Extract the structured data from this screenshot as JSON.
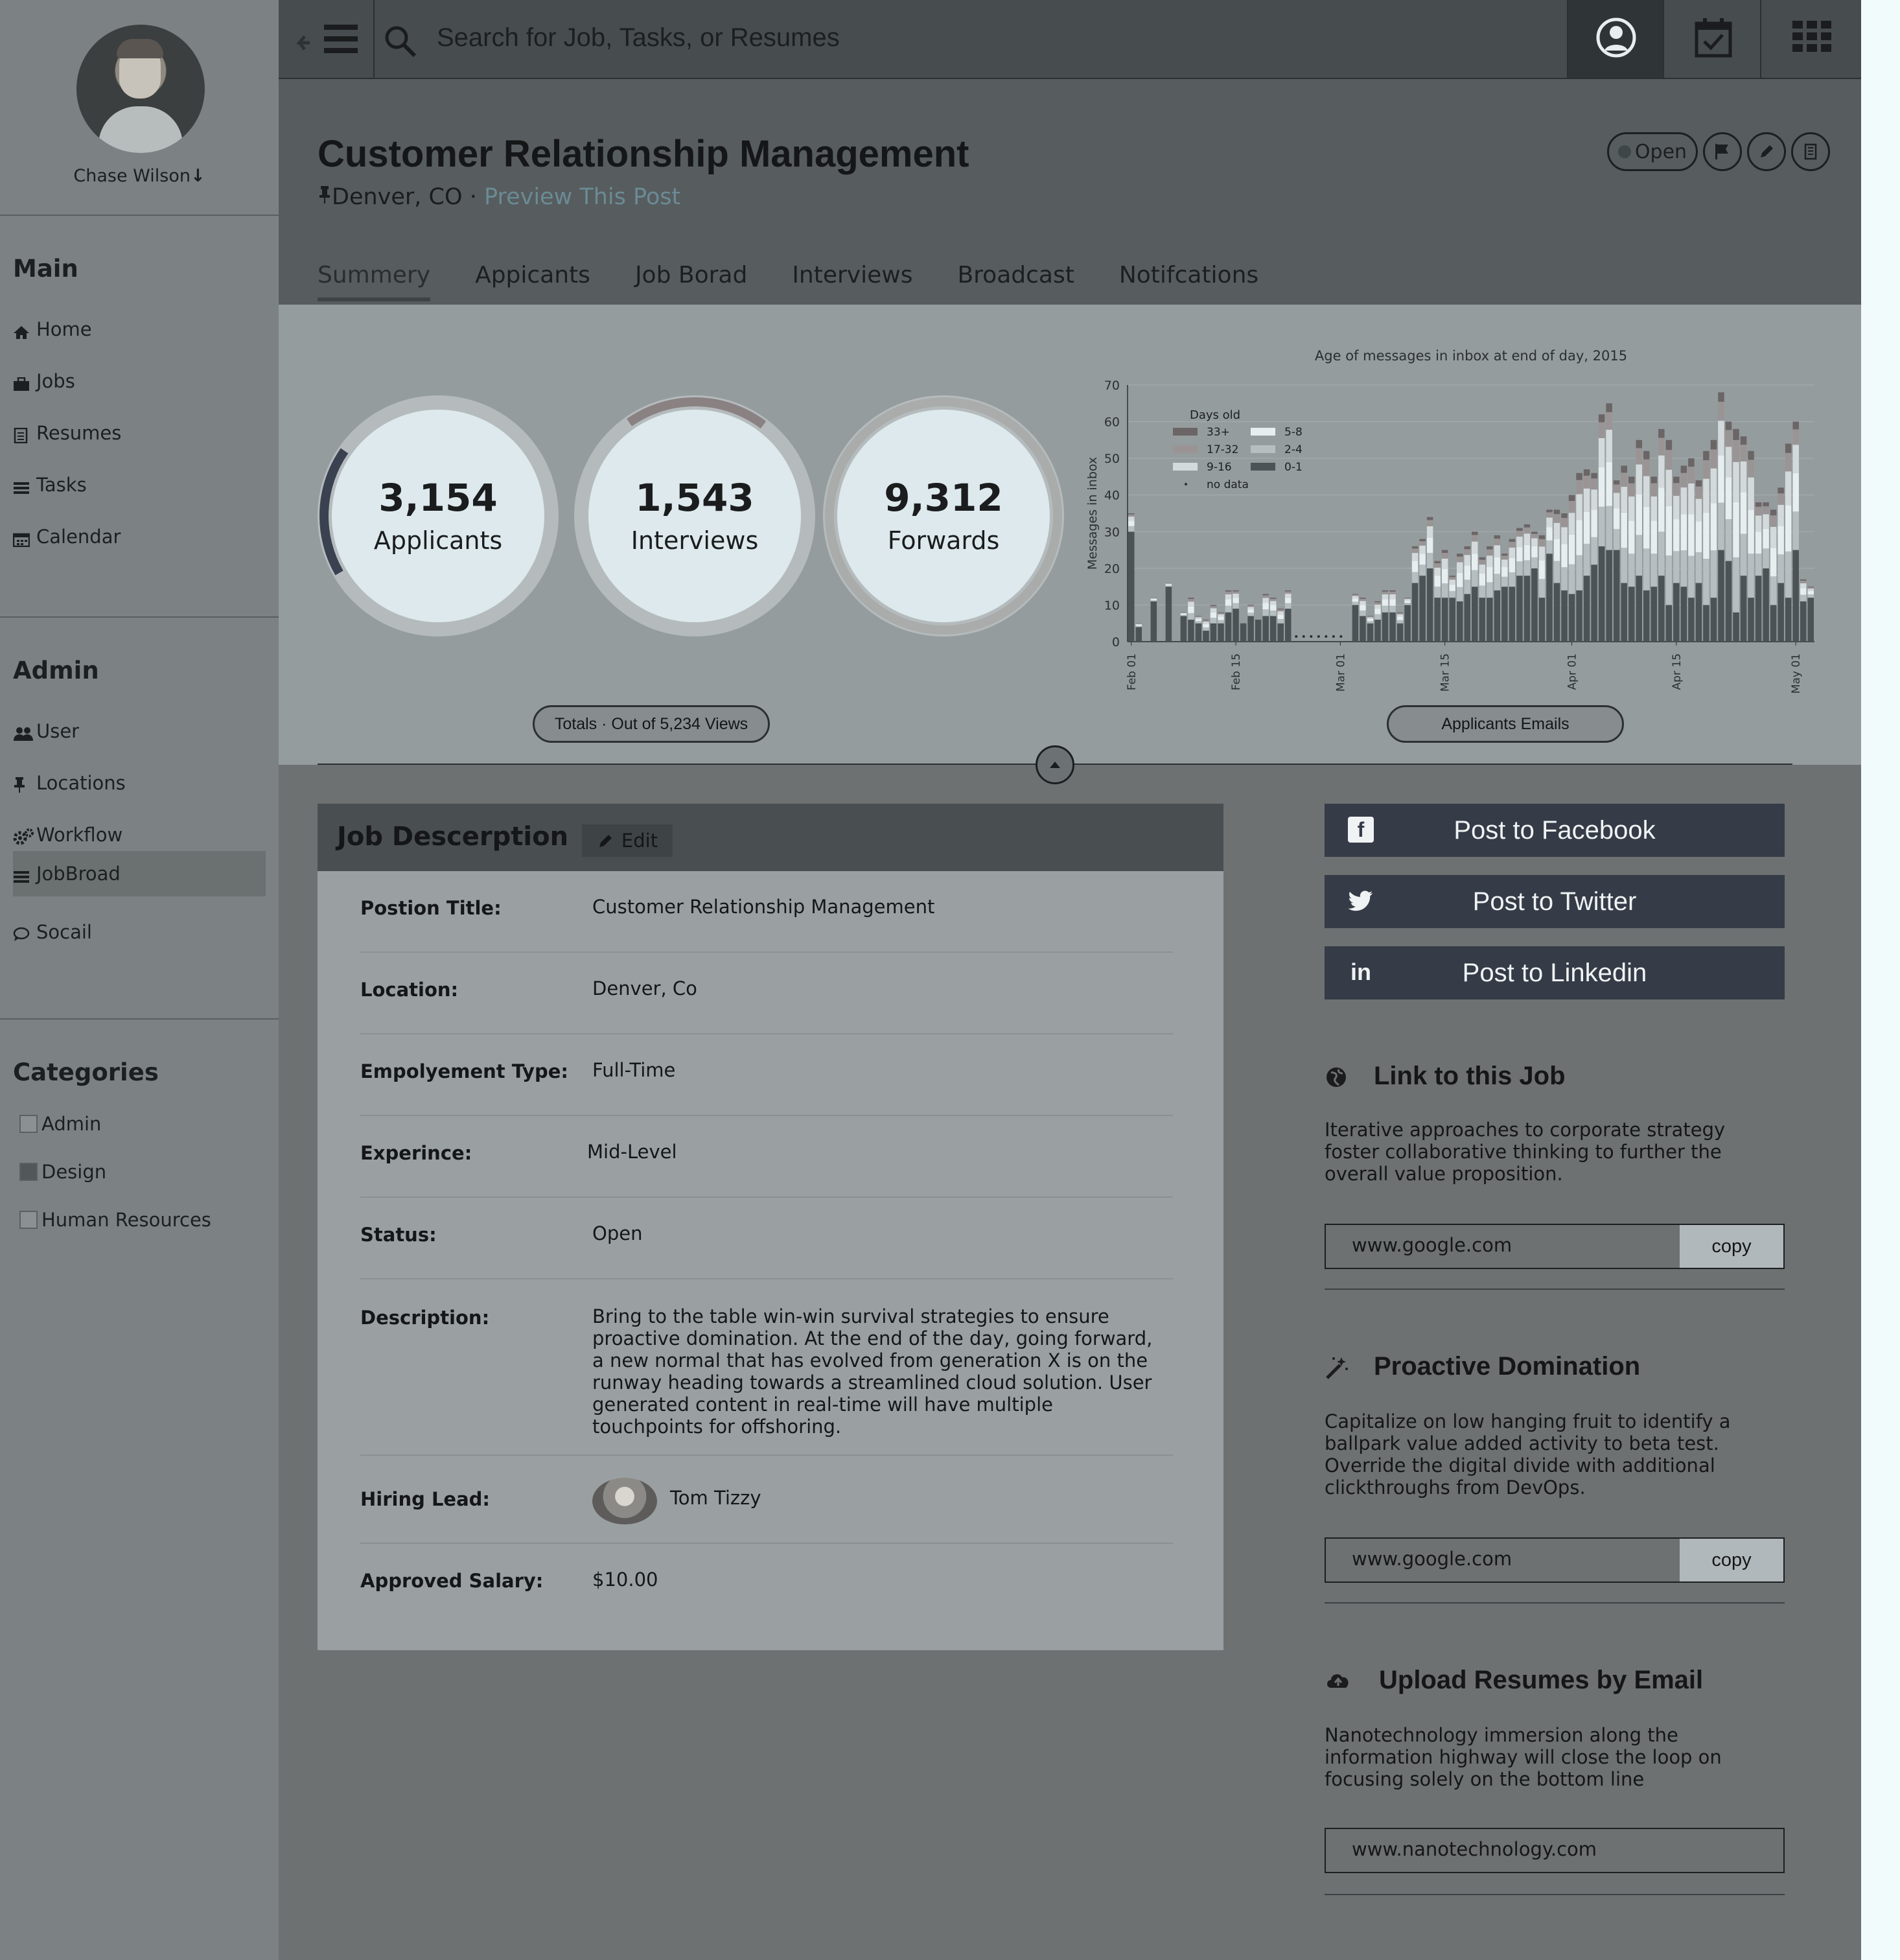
{
  "user": {
    "name": "Chase Wilson",
    "menu_arrow": "↓"
  },
  "sidebar": {
    "main_title": "Main",
    "main_items": [
      {
        "icon": "home-icon",
        "label": "Home"
      },
      {
        "icon": "briefcase-icon",
        "label": "Jobs"
      },
      {
        "icon": "document-icon",
        "label": "Resumes"
      },
      {
        "icon": "list-icon",
        "label": "Tasks"
      },
      {
        "icon": "calendar-icon",
        "label": "Calendar"
      }
    ],
    "admin_title": "Admin",
    "admin_items": [
      {
        "icon": "users-icon",
        "label": "User"
      },
      {
        "icon": "pin-icon",
        "label": "Locations"
      },
      {
        "icon": "gears-icon",
        "label": "Workflow"
      },
      {
        "icon": "list-icon",
        "label": "JobBroad",
        "active": true
      },
      {
        "icon": "chat-icon",
        "label": "Socail"
      }
    ],
    "categories_title": "Categories",
    "categories": [
      {
        "label": "Admin",
        "checked": false
      },
      {
        "label": "Design",
        "checked": true
      },
      {
        "label": "Human Resources",
        "checked": false
      }
    ]
  },
  "search": {
    "placeholder": "Search for Job, Tasks, or Resumes"
  },
  "topbar": {
    "buttons": [
      "profile-icon",
      "calendar-check-icon",
      "apps-grid-icon"
    ]
  },
  "job": {
    "title": "Customer Relationship Management",
    "location": "Denver, CO",
    "separator": "·",
    "preview_link": "Preview This Post",
    "status_pill": "Open",
    "actions": [
      "flag-icon",
      "pencil-icon",
      "trash-icon"
    ]
  },
  "tabs": [
    {
      "label": "Summery",
      "active": true
    },
    {
      "label": "Appicants"
    },
    {
      "label": "Job Borad"
    },
    {
      "label": "Interviews"
    },
    {
      "label": "Broadcast"
    },
    {
      "label": "Notifcations"
    }
  ],
  "stats": [
    {
      "value": "3,154",
      "label": "Applicants",
      "progress": 0.18
    },
    {
      "value": "1,543",
      "label": "Interviews",
      "progress": 0.2
    },
    {
      "value": "9,312",
      "label": "Forwards",
      "progress": 1.0
    }
  ],
  "totals_label": "Totals · Out of 5,234 Views",
  "chart_button": "Applicants Emails",
  "chart_data": {
    "type": "bar",
    "stacked": true,
    "title": "Age of messages in inbox at end of day, 2015",
    "ylabel": "Messages in inbox",
    "xlabel": "",
    "ylim": [
      0,
      70
    ],
    "yticks": [
      "0",
      "10",
      "20",
      "30",
      "40",
      "50",
      "60",
      "70"
    ],
    "xticks": [
      "Feb 01",
      "Feb 15",
      "Mar 01",
      "Mar 15",
      "Apr 01",
      "Apr 15",
      "May 01"
    ],
    "legend_title": "Days old",
    "legend_position": "top-left",
    "legend": [
      {
        "name": "33+",
        "color": "#6b6566"
      },
      {
        "name": "5-8",
        "color": "#e6eef0"
      },
      {
        "name": "17-32",
        "color": "#9a9495"
      },
      {
        "name": "2-4",
        "color": "#b5bec1"
      },
      {
        "name": "9-16",
        "color": "#d4dadb"
      },
      {
        "name": "0-1",
        "color": "#4b5356"
      },
      {
        "name": "no data",
        "color": "#2c3032"
      }
    ],
    "days": [
      "02-01",
      "02-02",
      "02-03",
      "02-04",
      "02-05",
      "02-06",
      "02-07",
      "02-08",
      "02-09",
      "02-10",
      "02-11",
      "02-12",
      "02-13",
      "02-14",
      "02-15",
      "02-16",
      "02-17",
      "02-18",
      "02-19",
      "02-20",
      "02-21",
      "02-22",
      "02-23",
      "02-24",
      "02-25",
      "02-26",
      "02-27",
      "02-28",
      "03-01",
      "03-02",
      "03-03",
      "03-04",
      "03-05",
      "03-06",
      "03-07",
      "03-08",
      "03-09",
      "03-10",
      "03-11",
      "03-12",
      "03-13",
      "03-14",
      "03-15",
      "03-16",
      "03-17",
      "03-18",
      "03-19",
      "03-20",
      "03-21",
      "03-22",
      "03-23",
      "03-24",
      "03-25",
      "03-26",
      "03-27",
      "03-28",
      "03-29",
      "03-30",
      "03-31",
      "04-01",
      "04-02",
      "04-03",
      "04-04",
      "04-05",
      "04-06",
      "04-07",
      "04-08",
      "04-09",
      "04-10",
      "04-11",
      "04-12",
      "04-13",
      "04-14",
      "04-15",
      "04-16",
      "04-17",
      "04-18",
      "04-19",
      "04-20",
      "04-21",
      "04-22",
      "04-23",
      "04-24",
      "04-25",
      "04-26",
      "04-27",
      "04-28",
      "04-29",
      "04-30",
      "05-01",
      "05-02"
    ],
    "totals": [
      35,
      5,
      0,
      12,
      0,
      16,
      0,
      8,
      12,
      7,
      6,
      10,
      8,
      14,
      14,
      5,
      10,
      6,
      13,
      12,
      9,
      14,
      0,
      0,
      0,
      0,
      0,
      0,
      0,
      0,
      13,
      12,
      7,
      11,
      14,
      14,
      8,
      12,
      26,
      28,
      34,
      22,
      25,
      18,
      24,
      26,
      30,
      23,
      26,
      29,
      24,
      28,
      31,
      32,
      30,
      29,
      36,
      36,
      35,
      40,
      46,
      47,
      46,
      62,
      65,
      44,
      48,
      45,
      55,
      52,
      45,
      58,
      55,
      45,
      48,
      50,
      44,
      52,
      55,
      68,
      60,
      58,
      56,
      52,
      38,
      38,
      36,
      42,
      54,
      60,
      17,
      15
    ],
    "zero_one": [
      30,
      4,
      0,
      11,
      0,
      15,
      0,
      7,
      6,
      5,
      3,
      5,
      5,
      8,
      9,
      5,
      7,
      6,
      7,
      7,
      5,
      9,
      0,
      0,
      0,
      0,
      0,
      0,
      0,
      0,
      10,
      7,
      5,
      6,
      8,
      8,
      5,
      10,
      16,
      18,
      20,
      12,
      12,
      12,
      11,
      13,
      15,
      12,
      12,
      14,
      15,
      15,
      18,
      18,
      20,
      12,
      24,
      16,
      14,
      13,
      14,
      18,
      21,
      26,
      25,
      25,
      16,
      15,
      18,
      14,
      15,
      18,
      10,
      16,
      15,
      12,
      16,
      10,
      12,
      25,
      22,
      8,
      18,
      12,
      18,
      20,
      10,
      16,
      12,
      25,
      11,
      12
    ]
  },
  "job_description": {
    "title": "Job Descerption",
    "edit_label": "Edit",
    "rows": [
      {
        "label": "Postion Title:",
        "value": "Customer Relationship Management"
      },
      {
        "label": "Location:",
        "value": "Denver, Co"
      },
      {
        "label": "Empolyement Type:",
        "value": "Full-Time"
      },
      {
        "label": "Experince:",
        "value": "Mid-Level"
      },
      {
        "label": "Status:",
        "value": "Open"
      },
      {
        "label": "Description:",
        "value": "Bring to the table win-win survival strategies to ensure proactive domination. At the end of the day, going forward, a new normal that has evolved from generation X is on the runway heading towards a streamlined cloud solution. User generated content in real-time will have multiple touchpoints for offshoring."
      },
      {
        "label": "Hiring Lead:",
        "value": "Tom Tizzy"
      },
      {
        "label": "Approved Salary:",
        "value": "$10.00"
      }
    ]
  },
  "social": [
    {
      "icon": "facebook-icon",
      "glyph": "f",
      "label": "Post to Facebook"
    },
    {
      "icon": "twitter-icon",
      "glyph": "🐦",
      "label": "Post to Twitter"
    },
    {
      "icon": "linkedin-icon",
      "glyph": "in",
      "label": "Post to Linkedin"
    }
  ],
  "blocks": [
    {
      "icon": "globe-icon",
      "title": "Link to this Job",
      "text": "Iterative approaches to corporate strategy foster collaborative thinking to further the overall value proposition.",
      "url": "www.google.com",
      "copy": "copy"
    },
    {
      "icon": "magic-wand-icon",
      "title": "Proactive Domination",
      "text": "Capitalize on low hanging fruit to identify a ballpark value added activity to beta test. Override the digital divide with additional clickthroughs from DevOps.",
      "url": "www.google.com",
      "copy": "copy"
    },
    {
      "icon": "cloud-upload-icon",
      "title": "Upload Resumes by Email",
      "text": "Nanotechnology immersion along the information highway will close the loop on focusing solely on the bottom line",
      "url": "www.nanotechnology.com"
    }
  ]
}
